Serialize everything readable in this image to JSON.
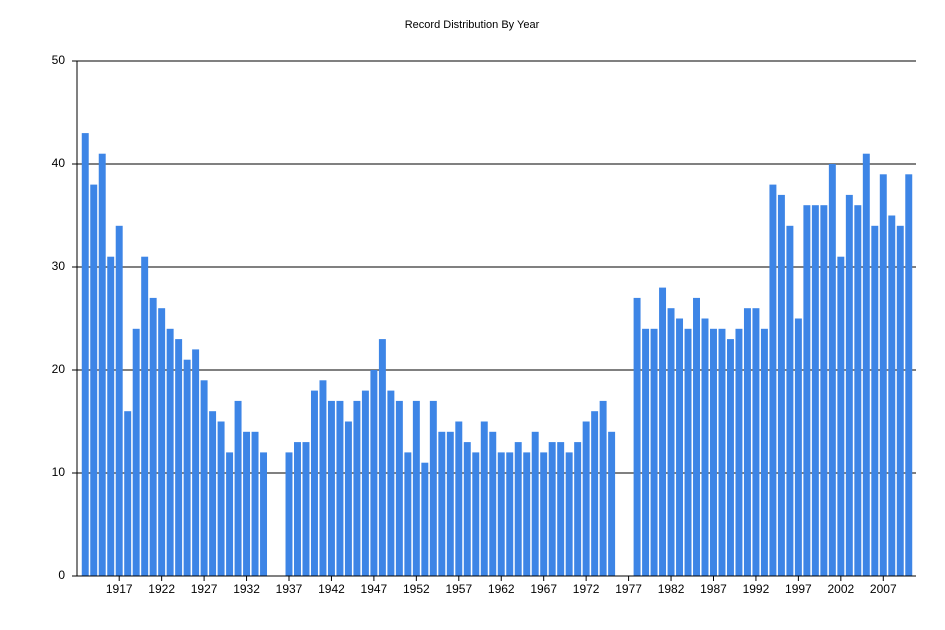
{
  "chart_data": {
    "type": "bar",
    "title": "Record Distribution By Year",
    "categories": [
      null,
      null,
      null,
      null,
      "1917",
      null,
      null,
      null,
      null,
      "1922",
      null,
      null,
      null,
      null,
      "1927",
      null,
      null,
      null,
      null,
      "1932",
      null,
      null,
      null,
      null,
      "1937",
      null,
      null,
      null,
      null,
      "1942",
      null,
      null,
      null,
      null,
      "1947",
      null,
      null,
      null,
      null,
      "1952",
      null,
      null,
      null,
      null,
      "1957",
      null,
      null,
      null,
      null,
      "1962",
      null,
      null,
      null,
      null,
      "1967",
      null,
      null,
      null,
      null,
      "1972",
      null,
      null,
      null,
      null,
      "1977",
      null,
      null,
      null,
      null,
      "1982",
      null,
      null,
      null,
      null,
      "1987",
      null,
      null,
      null,
      null,
      "1992",
      null,
      null,
      null,
      null,
      "1997",
      null,
      null,
      null,
      null,
      "2002",
      null,
      null,
      null,
      null,
      "2007",
      null,
      null,
      null
    ],
    "values": [
      43,
      38,
      41,
      31,
      34,
      16,
      24,
      31,
      27,
      26,
      24,
      23,
      21,
      22,
      19,
      16,
      15,
      12,
      17,
      14,
      14,
      12,
      null,
      null,
      12,
      13,
      13,
      18,
      19,
      17,
      17,
      15,
      17,
      18,
      20,
      23,
      18,
      17,
      12,
      17,
      11,
      17,
      14,
      14,
      15,
      13,
      12,
      15,
      14,
      12,
      12,
      13,
      12,
      14,
      12,
      13,
      13,
      12,
      13,
      15,
      16,
      17,
      14,
      null,
      null,
      27,
      24,
      24,
      28,
      26,
      25,
      24,
      27,
      25,
      24,
      24,
      23,
      24,
      26,
      26,
      24,
      38,
      37,
      34,
      25,
      36,
      36,
      36,
      40,
      31,
      37,
      36,
      41,
      34,
      39,
      35,
      34,
      39
    ],
    "color": "#3d85e6",
    "ylim": [
      0,
      50
    ],
    "yticks": [
      0,
      10,
      20,
      30,
      40,
      50
    ],
    "grid": true
  }
}
